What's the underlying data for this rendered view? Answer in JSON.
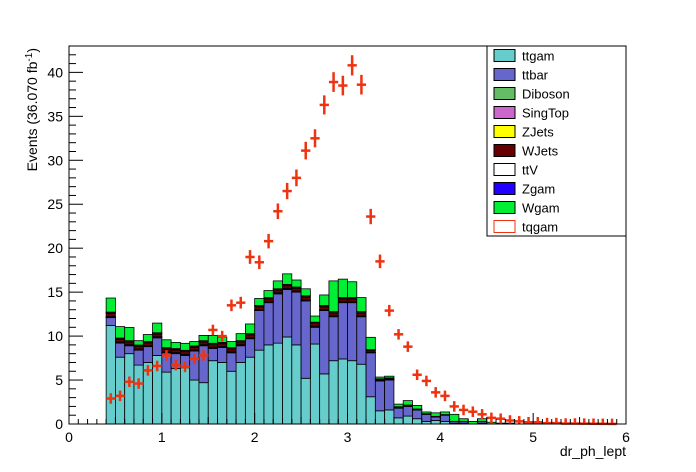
{
  "chart_data": {
    "type": "bar",
    "stacked": true,
    "xlabel": "dr_ph_lept",
    "ylabel": "Events (36.070 fb",
    "ylabel_sup": "-1",
    "ylabel_close": ")",
    "xlim": [
      0,
      6
    ],
    "ylim": [
      0,
      43
    ],
    "xticks": [
      0,
      1,
      2,
      3,
      4,
      5,
      6
    ],
    "yticks": [
      0,
      5,
      10,
      15,
      20,
      25,
      30,
      35,
      40
    ],
    "grid": false,
    "legend_position": "top-right",
    "bin_width": 0.1,
    "x": [
      0.45,
      0.55,
      0.65,
      0.75,
      0.85,
      0.95,
      1.05,
      1.15,
      1.25,
      1.35,
      1.45,
      1.55,
      1.65,
      1.75,
      1.85,
      1.95,
      2.05,
      2.15,
      2.25,
      2.35,
      2.45,
      2.55,
      2.65,
      2.75,
      2.85,
      2.95,
      3.05,
      3.15,
      3.25,
      3.35,
      3.45,
      3.55,
      3.65,
      3.75,
      3.85,
      3.95,
      4.05,
      4.15,
      4.25,
      4.35,
      4.45,
      4.55,
      4.65,
      4.75,
      4.85,
      4.95,
      5.05,
      5.15,
      5.25,
      5.35,
      5.45,
      5.55,
      5.65,
      5.75,
      5.85
    ],
    "series": [
      {
        "name": "ttgam",
        "color": "#66cccc",
        "values": [
          11.2,
          7.6,
          8.0,
          6.7,
          7.0,
          7.8,
          5.9,
          6.3,
          6.4,
          5.0,
          4.7,
          7.2,
          7.0,
          6.0,
          7.0,
          7.6,
          8.4,
          9.0,
          9.2,
          9.9,
          9.0,
          5.2,
          9.1,
          5.7,
          7.2,
          7.4,
          7.2,
          6.8,
          3.1,
          1.5,
          1.6,
          0.7,
          0.9,
          0.6,
          0.3,
          0.4,
          0.3,
          0.1,
          0.1,
          0.0,
          0.1,
          0.0,
          0.0,
          0.0,
          0.0,
          0.0,
          0.0,
          0.0,
          0.0,
          0.0,
          0.0,
          0.0,
          0.0,
          0.0,
          0.0
        ]
      },
      {
        "name": "ttbar",
        "color": "#6666cc",
        "values": [
          0.9,
          1.6,
          0.9,
          1.7,
          1.8,
          2.0,
          2.2,
          1.7,
          1.4,
          3.3,
          4.2,
          1.4,
          1.7,
          2.1,
          1.9,
          2.1,
          4.5,
          4.8,
          5.6,
          5.4,
          6.0,
          8.8,
          1.9,
          7.2,
          5.0,
          6.4,
          6.6,
          5.4,
          5.0,
          3.4,
          3.4,
          1.1,
          1.1,
          1.0,
          0.8,
          0.4,
          0.7,
          0.2,
          0.2,
          0.0,
          0.2,
          0.0,
          0.0,
          0.0,
          0.0,
          0.0,
          0.0,
          0.0,
          0.0,
          0.0,
          0.0,
          0.0,
          0.0,
          0.0,
          0.0
        ]
      },
      {
        "name": "Diboson",
        "color": "#66bb66",
        "values": [
          0.03,
          0.03,
          0.03,
          0.03,
          0.03,
          0.03,
          0.03,
          0.03,
          0.03,
          0.03,
          0.03,
          0.03,
          0.03,
          0.03,
          0.03,
          0.03,
          0.03,
          0.03,
          0.03,
          0.03,
          0.03,
          0.03,
          0.03,
          0.03,
          0.03,
          0.03,
          0.03,
          0.03,
          0.02,
          0.01,
          0.01,
          0.01,
          0.01,
          0.01,
          0.0,
          0.0,
          0.0,
          0.0,
          0.0,
          0.0,
          0.0,
          0.0,
          0.0,
          0.0,
          0.0,
          0.0,
          0.0,
          0.0,
          0.0,
          0.0,
          0.0,
          0.0,
          0.0,
          0.0,
          0.0
        ]
      },
      {
        "name": "SingTop",
        "color": "#cc66cc",
        "values": [
          0.08,
          0.08,
          0.08,
          0.08,
          0.08,
          0.08,
          0.08,
          0.08,
          0.08,
          0.08,
          0.08,
          0.08,
          0.08,
          0.08,
          0.08,
          0.08,
          0.08,
          0.08,
          0.08,
          0.08,
          0.08,
          0.08,
          0.08,
          0.08,
          0.08,
          0.08,
          0.08,
          0.08,
          0.05,
          0.04,
          0.04,
          0.02,
          0.02,
          0.02,
          0.01,
          0.01,
          0.01,
          0.0,
          0.0,
          0.0,
          0.0,
          0.0,
          0.0,
          0.0,
          0.0,
          0.0,
          0.0,
          0.0,
          0.0,
          0.0,
          0.0,
          0.0,
          0.0,
          0.0,
          0.0
        ]
      },
      {
        "name": "ZJets",
        "color": "#ffff00",
        "values": [
          0.02,
          0.02,
          0.02,
          0.02,
          0.02,
          0.02,
          0.02,
          0.02,
          0.02,
          0.02,
          0.02,
          0.02,
          0.02,
          0.02,
          0.02,
          0.02,
          0.02,
          0.02,
          0.02,
          0.02,
          0.02,
          0.02,
          0.02,
          0.02,
          0.02,
          0.02,
          0.02,
          0.02,
          0.01,
          0.01,
          0.01,
          0.0,
          0.0,
          0.0,
          0.0,
          0.0,
          0.0,
          0.0,
          0.0,
          0.0,
          0.0,
          0.0,
          0.0,
          0.0,
          0.0,
          0.0,
          0.0,
          0.0,
          0.0,
          0.0,
          0.0,
          0.0,
          0.0,
          0.0,
          0.0
        ]
      },
      {
        "name": "WJets",
        "color": "#660000",
        "values": [
          0.35,
          0.3,
          0.3,
          0.3,
          0.3,
          0.3,
          0.3,
          0.3,
          0.3,
          0.3,
          0.3,
          0.3,
          0.3,
          0.3,
          0.3,
          0.3,
          0.3,
          0.3,
          0.3,
          0.3,
          0.3,
          0.3,
          0.3,
          0.3,
          0.3,
          0.3,
          0.3,
          0.3,
          0.2,
          0.1,
          0.1,
          0.1,
          0.1,
          0.05,
          0.05,
          0.05,
          0.05,
          0.0,
          0.0,
          0.0,
          0.0,
          0.0,
          0.0,
          0.0,
          0.0,
          0.0,
          0.0,
          0.0,
          0.0,
          0.0,
          0.0,
          0.0,
          0.0,
          0.0,
          0.0
        ]
      },
      {
        "name": "ttV",
        "color": "#ffffff",
        "values": [
          0.1,
          0.1,
          0.1,
          0.1,
          0.1,
          0.1,
          0.1,
          0.1,
          0.1,
          0.1,
          0.1,
          0.1,
          0.1,
          0.1,
          0.1,
          0.1,
          0.1,
          0.1,
          0.1,
          0.1,
          0.1,
          0.1,
          0.1,
          0.1,
          0.1,
          0.1,
          0.1,
          0.1,
          0.05,
          0.05,
          0.05,
          0.02,
          0.02,
          0.02,
          0.01,
          0.01,
          0.01,
          0.0,
          0.0,
          0.0,
          0.0,
          0.0,
          0.0,
          0.0,
          0.0,
          0.0,
          0.0,
          0.0,
          0.0,
          0.0,
          0.0,
          0.0,
          0.0,
          0.0,
          0.0
        ]
      },
      {
        "name": "Zgam",
        "color": "#2200ff",
        "values": [
          0.05,
          0.05,
          0.05,
          0.05,
          0.05,
          0.05,
          0.05,
          0.05,
          0.05,
          0.05,
          0.05,
          0.05,
          0.05,
          0.05,
          0.05,
          0.05,
          0.05,
          0.05,
          0.05,
          0.05,
          0.05,
          0.05,
          0.05,
          0.05,
          0.05,
          0.05,
          0.05,
          0.05,
          0.03,
          0.03,
          0.03,
          0.01,
          0.01,
          0.01,
          0.0,
          0.0,
          0.0,
          0.0,
          0.0,
          0.0,
          0.0,
          0.0,
          0.0,
          0.0,
          0.0,
          0.0,
          0.0,
          0.0,
          0.0,
          0.0,
          0.0,
          0.0,
          0.0,
          0.0,
          0.0
        ]
      },
      {
        "name": "Wgam",
        "color": "#00ee33",
        "values": [
          1.6,
          1.3,
          1.5,
          0.5,
          0.8,
          1.1,
          0.9,
          0.7,
          0.8,
          0.5,
          0.6,
          0.9,
          0.6,
          0.7,
          0.8,
          1.1,
          0.8,
          0.8,
          0.9,
          1.2,
          0.8,
          0.8,
          0.7,
          1.2,
          3.5,
          2.1,
          1.8,
          1.6,
          1.4,
          0.2,
          0.2,
          0.3,
          0.5,
          0.4,
          0.2,
          0.4,
          0.3,
          0.8,
          0.3,
          0.3,
          0.3,
          0.2,
          0.1,
          0.1,
          0.0,
          0.0,
          0.0,
          0.0,
          0.0,
          0.0,
          0.0,
          0.0,
          0.0,
          0.0,
          0.0
        ]
      },
      {
        "name": "tqgam",
        "color": "#ee3311",
        "type": "markers",
        "values": [
          2.9,
          3.2,
          4.8,
          4.6,
          6.1,
          6.6,
          7.8,
          6.7,
          6.5,
          7.4,
          7.8,
          10.7,
          10.0,
          13.5,
          13.8,
          19.0,
          18.4,
          20.8,
          24.2,
          26.5,
          28.0,
          31.1,
          32.5,
          36.3,
          38.9,
          38.5,
          40.8,
          38.6,
          23.6,
          18.5,
          12.9,
          10.2,
          8.8,
          5.6,
          4.9,
          3.6,
          3.2,
          2.0,
          1.6,
          1.4,
          1.1,
          0.7,
          0.6,
          0.4,
          0.3,
          0.2,
          0.2,
          0.1,
          0.1,
          0.05,
          0.05,
          0.04,
          0.03,
          0.02,
          0.01
        ]
      }
    ]
  }
}
